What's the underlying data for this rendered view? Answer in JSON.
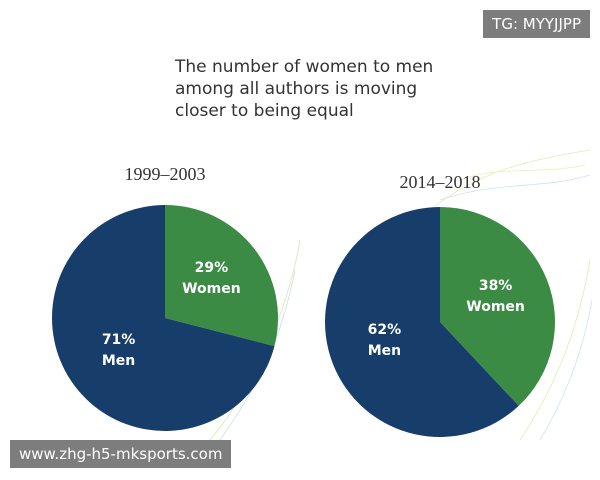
{
  "title": "The number of women to men among all authors is moving closer to being equal",
  "watermarks": [
    "TG: MYYJJPP",
    "www.zhg-h5-mksports.com"
  ],
  "chart_data": [
    {
      "type": "pie",
      "title": "1999–2003",
      "categories": [
        "Women",
        "Men"
      ],
      "values": [
        29,
        71
      ],
      "value_labels": [
        "29%",
        "71%"
      ],
      "colors": [
        "#3b8b45",
        "#173e6a"
      ]
    },
    {
      "type": "pie",
      "title": "2014–2018",
      "categories": [
        "Women",
        "Men"
      ],
      "values": [
        38,
        62
      ],
      "value_labels": [
        "38%",
        "62%"
      ],
      "colors": [
        "#3b8b45",
        "#173e6a"
      ]
    }
  ]
}
